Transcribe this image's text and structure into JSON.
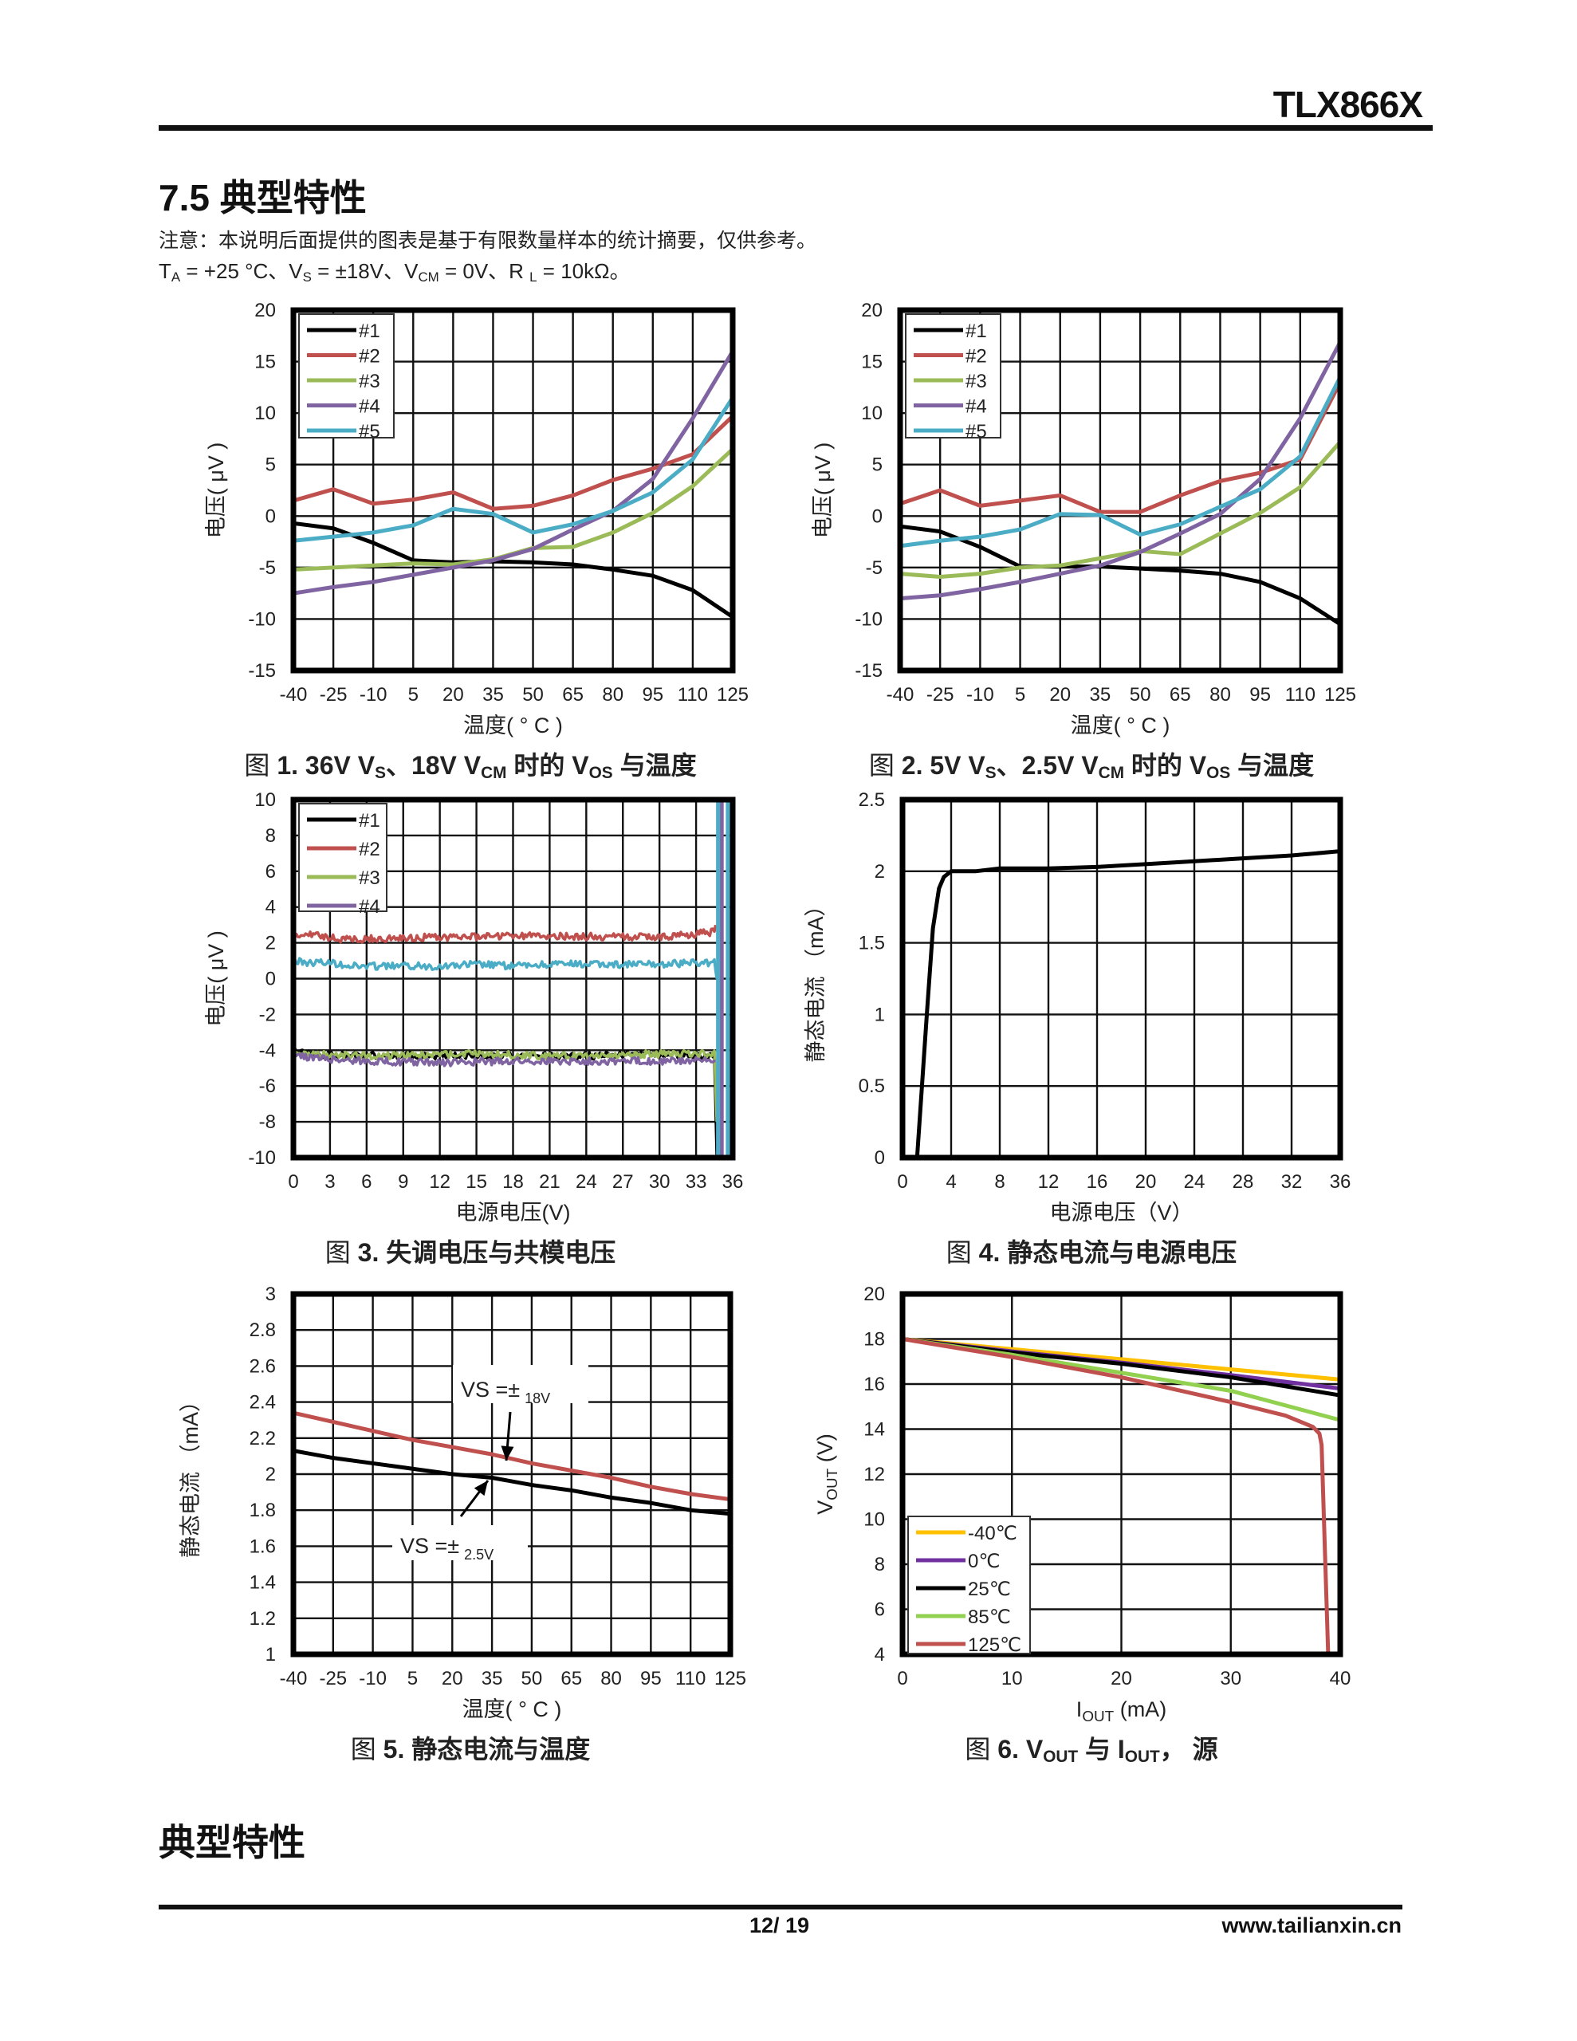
{
  "header": {
    "doc_id": "TLX866X"
  },
  "section": {
    "title": "7.5 典型特性",
    "note": "注意：本说明后面提供的图表是基于有限数量样本的统计摘要，仅供参考。",
    "conditions": [
      {
        "t": "T"
      },
      {
        "t": "A",
        "sub": true
      },
      {
        "t": " = +25 °C、V"
      },
      {
        "t": "S",
        "sub": true
      },
      {
        "t": " = ±18V、V"
      },
      {
        "t": "CM",
        "sub": true
      },
      {
        "t": " = 0V、R "
      },
      {
        "t": "L",
        "sub": true
      },
      {
        "t": " = 10kΩ。"
      }
    ]
  },
  "chart_data": [
    {
      "type": "line",
      "caption": [
        {
          "t": "图 ",
          "reg": true
        },
        {
          "t": "1. 36V  V"
        },
        {
          "t": "S",
          "sub": true
        },
        {
          "t": "、18V  V"
        },
        {
          "t": "CM",
          "sub": true
        },
        {
          "t": " 时的 V"
        },
        {
          "t": "OS",
          "sub": true
        },
        {
          "t": " 与温度"
        }
      ],
      "xlabel": [
        {
          "t": "温度( ° C )"
        }
      ],
      "ylabel": [
        {
          "t": "电压( μV )"
        }
      ],
      "xlim": [
        -40,
        125
      ],
      "ylim": [
        -15,
        20
      ],
      "xticks": [
        -40,
        -25,
        -10,
        5,
        20,
        35,
        50,
        65,
        80,
        95,
        110,
        125
      ],
      "yticks": [
        -15,
        -10,
        -5,
        0,
        5,
        10,
        15,
        20
      ],
      "grid": true,
      "legend": "top-left",
      "x": [
        -40,
        -25,
        -10,
        5,
        20,
        35,
        50,
        65,
        80,
        95,
        110,
        125
      ],
      "series": [
        {
          "name": "#1",
          "color": "#000000",
          "y": [
            -0.7,
            -1.2,
            -2.6,
            -4.3,
            -4.5,
            -4.4,
            -4.5,
            -4.7,
            -5.2,
            -5.8,
            -7.2,
            -9.8
          ]
        },
        {
          "name": "#2",
          "color": "#c0504d",
          "y": [
            1.5,
            2.6,
            1.2,
            1.6,
            2.3,
            0.7,
            1.0,
            2.0,
            3.5,
            4.6,
            6.0,
            9.7
          ]
        },
        {
          "name": "#3",
          "color": "#9bbb59",
          "y": [
            -5.2,
            -5.0,
            -4.8,
            -4.6,
            -4.7,
            -4.2,
            -3.1,
            -3.0,
            -1.6,
            0.3,
            2.9,
            6.5
          ]
        },
        {
          "name": "#4",
          "color": "#8064a2",
          "y": [
            -7.5,
            -6.9,
            -6.4,
            -5.7,
            -5.0,
            -4.3,
            -3.2,
            -1.3,
            0.5,
            3.6,
            9.5,
            16.0
          ]
        },
        {
          "name": "#5",
          "color": "#4bacc6",
          "y": [
            -2.4,
            -2.0,
            -1.6,
            -0.9,
            0.7,
            0.2,
            -1.6,
            -0.8,
            0.5,
            2.3,
            5.5,
            11.5
          ]
        }
      ]
    },
    {
      "type": "line",
      "caption": [
        {
          "t": "图 ",
          "reg": true
        },
        {
          "t": "2.  5V  V"
        },
        {
          "t": "S",
          "sub": true
        },
        {
          "t": "、2.5V  V"
        },
        {
          "t": "CM",
          "sub": true
        },
        {
          "t": " 时的 V"
        },
        {
          "t": "OS",
          "sub": true
        },
        {
          "t": " 与温度"
        }
      ],
      "xlabel": [
        {
          "t": "温度( ° C )"
        }
      ],
      "ylabel": [
        {
          "t": "电压( μV )"
        }
      ],
      "xlim": [
        -40,
        125
      ],
      "ylim": [
        -15,
        20
      ],
      "xticks": [
        -40,
        -25,
        -10,
        5,
        20,
        35,
        50,
        65,
        80,
        95,
        110,
        125
      ],
      "yticks": [
        -15,
        -10,
        -5,
        0,
        5,
        10,
        15,
        20
      ],
      "grid": true,
      "legend": "top-left",
      "x": [
        -40,
        -25,
        -10,
        5,
        20,
        35,
        50,
        65,
        80,
        95,
        110,
        125
      ],
      "series": [
        {
          "name": "#1",
          "color": "#000000",
          "y": [
            -1.0,
            -1.5,
            -3.0,
            -4.9,
            -4.9,
            -4.9,
            -5.1,
            -5.3,
            -5.6,
            -6.4,
            -8.0,
            -10.5
          ]
        },
        {
          "name": "#2",
          "color": "#c0504d",
          "y": [
            1.2,
            2.5,
            1.0,
            1.5,
            2.0,
            0.4,
            0.4,
            2.0,
            3.4,
            4.2,
            5.5,
            13.0
          ]
        },
        {
          "name": "#3",
          "color": "#9bbb59",
          "y": [
            -5.6,
            -5.9,
            -5.6,
            -5.0,
            -4.8,
            -4.1,
            -3.4,
            -3.7,
            -1.7,
            0.3,
            2.8,
            7.2
          ]
        },
        {
          "name": "#4",
          "color": "#8064a2",
          "y": [
            -8.0,
            -7.7,
            -7.1,
            -6.4,
            -5.6,
            -4.8,
            -3.5,
            -1.7,
            0.2,
            3.6,
            9.5,
            16.9
          ]
        },
        {
          "name": "#5",
          "color": "#4bacc6",
          "y": [
            -2.9,
            -2.4,
            -2.0,
            -1.3,
            0.2,
            0.1,
            -1.8,
            -0.8,
            0.9,
            2.6,
            5.8,
            13.5
          ]
        }
      ]
    },
    {
      "type": "line",
      "caption": [
        {
          "t": "图 ",
          "reg": true
        },
        {
          "t": "3. 失调电压与共模电压"
        }
      ],
      "xlabel": [
        {
          "t": "电源电压(V)"
        }
      ],
      "ylabel": [
        {
          "t": "电压( μV )"
        }
      ],
      "xlim": [
        0,
        36
      ],
      "ylim": [
        -10,
        10
      ],
      "xticks": [
        0,
        3,
        6,
        9,
        12,
        15,
        18,
        21,
        24,
        27,
        30,
        33,
        36
      ],
      "yticks": [
        -10,
        -8,
        -6,
        -4,
        -2,
        0,
        2,
        4,
        6,
        8,
        10
      ],
      "grid": true,
      "legend": "top-left",
      "series": [
        {
          "color": "#4bacc6",
          "noisy": true,
          "x": [
            0,
            1,
            3,
            5,
            9,
            12,
            15,
            18,
            21,
            24,
            27,
            30,
            33,
            34.5,
            34.7
          ],
          "y": [
            1.0,
            0.9,
            0.9,
            0.7,
            0.7,
            0.7,
            0.8,
            0.7,
            0.8,
            0.8,
            0.8,
            0.8,
            0.9,
            0.9,
            0.0
          ]
        },
        {
          "name": "#1",
          "color": "#000000",
          "noisy": true,
          "x": [
            0,
            1,
            5,
            10,
            15,
            20,
            25,
            30,
            34.5,
            34.7
          ],
          "y": [
            -3.9,
            -4.2,
            -4.3,
            -4.3,
            -4.3,
            -4.3,
            -4.3,
            -4.2,
            -4.3,
            -10
          ]
        },
        {
          "name": "#2",
          "color": "#c0504d",
          "noisy": true,
          "x": [
            0,
            1.5,
            4,
            10,
            20,
            30,
            33,
            34.5,
            34.6
          ],
          "y": [
            2.3,
            2.5,
            2.2,
            2.3,
            2.4,
            2.3,
            2.5,
            2.6,
            3.0
          ]
        },
        {
          "name": "#3",
          "color": "#9bbb59",
          "noisy": true,
          "x": [
            0,
            5,
            10,
            15,
            20,
            25,
            30,
            34.5,
            34.7
          ],
          "y": [
            -4.2,
            -4.3,
            -4.3,
            -4.2,
            -4.3,
            -4.3,
            -4.2,
            -4.2,
            -8
          ]
        },
        {
          "name": "#4",
          "color": "#8064a2",
          "noisy": true,
          "x": [
            0,
            3,
            6,
            12,
            18,
            24,
            30,
            34.6
          ],
          "y": [
            -4.3,
            -4.5,
            -4.6,
            -4.7,
            -4.6,
            -4.6,
            -4.6,
            -4.6
          ]
        },
        {
          "color": "#8064a2",
          "x": [
            35.1,
            35.1
          ],
          "y": [
            -10,
            10
          ]
        },
        {
          "color": "#4bacc6",
          "x": [
            34.8,
            34.8
          ],
          "y": [
            -10,
            10
          ]
        },
        {
          "color": "#4bacc6",
          "x": [
            35.6,
            35.6
          ],
          "y": [
            -10,
            10
          ]
        }
      ]
    },
    {
      "type": "line",
      "caption": [
        {
          "t": "图 ",
          "reg": true
        },
        {
          "t": "4. 静态电流与电源电压"
        }
      ],
      "xlabel": [
        {
          "t": "电源电压（V）"
        }
      ],
      "ylabel": [
        {
          "t": "静态电流 （mA）"
        }
      ],
      "xlim": [
        0,
        36
      ],
      "ylim": [
        0,
        2.5
      ],
      "xticks": [
        0,
        4,
        8,
        12,
        16,
        20,
        24,
        28,
        32,
        36
      ],
      "yticks": [
        0,
        0.5,
        1,
        1.5,
        2,
        2.5
      ],
      "grid": true,
      "legend": "none",
      "series": [
        {
          "color": "#000000",
          "x": [
            1.2,
            2.0,
            2.5,
            3.0,
            3.4,
            4.0,
            6,
            8,
            12,
            16,
            20,
            24,
            28,
            32,
            36
          ],
          "y": [
            0,
            1.0,
            1.6,
            1.88,
            1.96,
            2.0,
            2.0,
            2.02,
            2.02,
            2.03,
            2.05,
            2.07,
            2.09,
            2.11,
            2.14
          ]
        }
      ]
    },
    {
      "type": "line",
      "caption": [
        {
          "t": "图 ",
          "reg": true
        },
        {
          "t": "5. 静态电流与温度"
        }
      ],
      "xlabel": [
        {
          "t": "温度( ° C )"
        }
      ],
      "ylabel": [
        {
          "t": "静态电流 （mA）"
        }
      ],
      "xlim": [
        -40,
        125
      ],
      "ylim": [
        1,
        3
      ],
      "xticks": [
        -40,
        -25,
        -10,
        5,
        20,
        35,
        50,
        65,
        80,
        95,
        110,
        125
      ],
      "yticks": [
        1,
        1.2,
        1.4,
        1.6,
        1.8,
        2,
        2.2,
        2.4,
        2.6,
        2.8,
        3
      ],
      "grid": true,
      "legend": "none",
      "x": [
        -40,
        -25,
        -10,
        5,
        20,
        35,
        50,
        65,
        80,
        95,
        110,
        125
      ],
      "series": [
        {
          "color": "#c0504d",
          "y": [
            2.34,
            2.29,
            2.24,
            2.19,
            2.15,
            2.11,
            2.06,
            2.02,
            1.98,
            1.93,
            1.89,
            1.86
          ]
        },
        {
          "color": "#000000",
          "y": [
            2.13,
            2.09,
            2.06,
            2.03,
            2.0,
            1.98,
            1.94,
            1.91,
            1.87,
            1.84,
            1.8,
            1.78
          ]
        }
      ],
      "annotations": [
        {
          "prefix": "VS =±",
          "sub": "18V"
        },
        {
          "prefix": "VS =±",
          "sub": "2.5V"
        }
      ]
    },
    {
      "type": "line",
      "caption": [
        {
          "t": "图 ",
          "reg": true
        },
        {
          "t": "6. V"
        },
        {
          "t": "OUT",
          "sub": true
        },
        {
          "t": " 与 I"
        },
        {
          "t": "OUT",
          "sub": true
        },
        {
          "t": "，  源"
        }
      ],
      "xlabel": [
        {
          "t": "I"
        },
        {
          "t": "OUT",
          "sub": true
        },
        {
          "t": " (mA)"
        }
      ],
      "ylabel": [
        {
          "t": "V"
        },
        {
          "t": "OUT",
          "sub": true
        },
        {
          "t": " (V)"
        }
      ],
      "xlim": [
        0,
        40
      ],
      "ylim": [
        4,
        20
      ],
      "xticks": [
        0,
        10,
        20,
        30,
        40
      ],
      "yticks": [
        4,
        6,
        8,
        10,
        12,
        14,
        16,
        18,
        20
      ],
      "grid": true,
      "legend": "bottom-left",
      "series": [
        {
          "name": "-40℃",
          "color": "#ffc000",
          "x": [
            0,
            10,
            20,
            30,
            40
          ],
          "y": [
            18,
            17.55,
            17.1,
            16.65,
            16.2
          ]
        },
        {
          "name": "0℃",
          "color": "#7030a0",
          "x": [
            0,
            10,
            20,
            30,
            40
          ],
          "y": [
            18,
            17.45,
            16.95,
            16.4,
            15.8
          ]
        },
        {
          "name": "25℃",
          "color": "#000000",
          "x": [
            0,
            10,
            20,
            30,
            40
          ],
          "y": [
            18,
            17.4,
            16.9,
            16.3,
            15.5
          ]
        },
        {
          "name": "85℃",
          "color": "#92d050",
          "x": [
            0,
            10,
            20,
            30,
            40
          ],
          "y": [
            18,
            17.3,
            16.5,
            15.7,
            14.4
          ]
        },
        {
          "name": "125℃",
          "color": "#c0504d",
          "x": [
            0,
            10,
            20,
            30,
            35,
            37.5,
            38.1,
            38.3,
            38.9
          ],
          "y": [
            18,
            17.2,
            16.3,
            15.2,
            14.6,
            14.1,
            13.8,
            13.3,
            4
          ]
        }
      ]
    }
  ],
  "section2": {
    "title": "典型特性"
  },
  "footer": {
    "page": "12/ 19",
    "website": "www.tailianxin.cn"
  }
}
